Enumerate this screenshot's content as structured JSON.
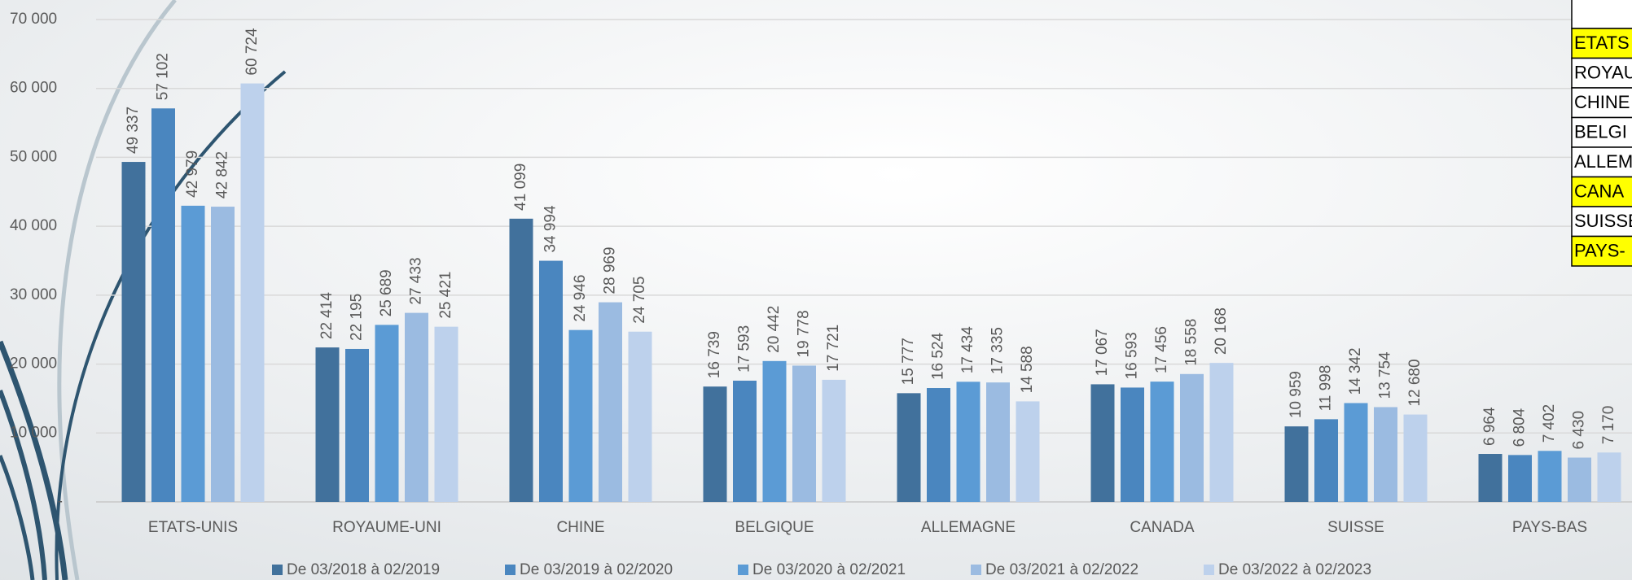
{
  "chart_data": {
    "type": "bar",
    "categories": [
      "ETATS-UNIS",
      "ROYAUME-UNI",
      "CHINE",
      "BELGIQUE",
      "ALLEMAGNE",
      "CANADA",
      "SUISSE",
      "PAYS-BAS"
    ],
    "series": [
      {
        "name": "De 03/2018 à 02/2019",
        "color": "#41719c",
        "values": [
          49337,
          22414,
          41099,
          16739,
          15777,
          17067,
          10959,
          6964
        ],
        "value_labels": [
          "49 337",
          "22 414",
          "41 099",
          "16 739",
          "15 777",
          "17 067",
          "10 959",
          "6 964"
        ]
      },
      {
        "name": "De 03/2019 à 02/2020",
        "color": "#4a86bf",
        "values": [
          57102,
          22195,
          34994,
          17593,
          16524,
          16593,
          11998,
          6804
        ],
        "value_labels": [
          "57 102",
          "22 195",
          "34 994",
          "17 593",
          "16 524",
          "16 593",
          "11 998",
          "6 804"
        ]
      },
      {
        "name": "De 03/2020 à 02/2021",
        "color": "#5b9bd5",
        "values": [
          42979,
          25689,
          24946,
          20442,
          17434,
          17456,
          14342,
          7402
        ],
        "value_labels": [
          "42 979",
          "25 689",
          "24 946",
          "20 442",
          "17 434",
          "17 456",
          "14 342",
          "7 402"
        ]
      },
      {
        "name": "De 03/2021 à 02/2022",
        "color": "#9bbbe1",
        "values": [
          42842,
          27433,
          28969,
          19778,
          17335,
          18558,
          13754,
          6430
        ],
        "value_labels": [
          "42 842",
          "27 433",
          "28 969",
          "19 778",
          "17 335",
          "18 558",
          "13 754",
          "6 430"
        ]
      },
      {
        "name": "De 03/2022 à 02/2023",
        "color": "#bdd1ec",
        "values": [
          60724,
          25421,
          24705,
          17721,
          14588,
          20168,
          12680,
          7170
        ],
        "value_labels": [
          "60 724",
          "25 421",
          "24 705",
          "17 721",
          "14 588",
          "20 168",
          "12 680",
          "7 170"
        ]
      }
    ],
    "ylim": [
      0,
      70000
    ],
    "yticks": [
      {
        "value": 0,
        "label": "-"
      },
      {
        "value": 10000,
        "label": "10 000"
      },
      {
        "value": 20000,
        "label": "20 000"
      },
      {
        "value": 30000,
        "label": "30 000"
      },
      {
        "value": 40000,
        "label": "40 000"
      },
      {
        "value": 50000,
        "label": "50 000"
      },
      {
        "value": 60000,
        "label": "60 000"
      },
      {
        "value": 70000,
        "label": "70 000"
      }
    ],
    "grid": true,
    "legend": "bottom"
  },
  "table": {
    "rows": [
      {
        "text": "ETATS",
        "highlight": true
      },
      {
        "text": "ROYAU",
        "highlight": false
      },
      {
        "text": "CHINE",
        "highlight": false
      },
      {
        "text": "BELGI",
        "highlight": false
      },
      {
        "text": "ALLEM",
        "highlight": false
      },
      {
        "text": "CANA",
        "highlight": true
      },
      {
        "text": "SUISSE",
        "highlight": false
      },
      {
        "text": "PAYS-",
        "highlight": true
      }
    ]
  }
}
